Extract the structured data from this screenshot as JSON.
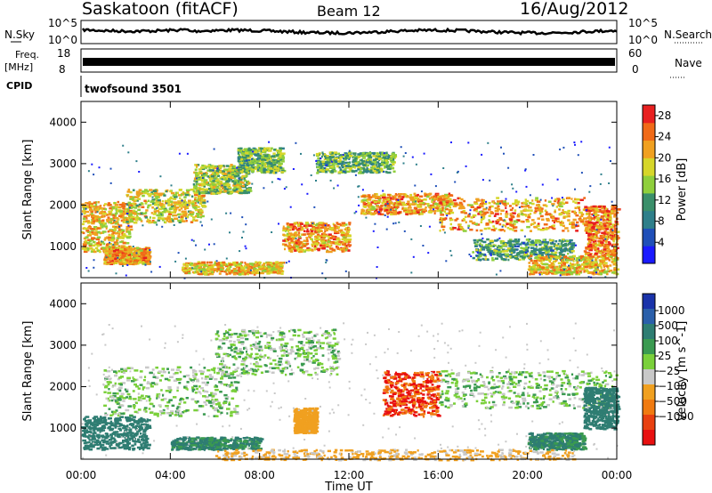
{
  "header": {
    "station": "Saskatoon (fitACF)",
    "beam": "Beam 12",
    "date": "16/Aug/2012"
  },
  "top_panels": {
    "nsky_label": "N.Sky",
    "nsky_ticks": [
      "10^5",
      "10^0"
    ],
    "nsearch_label": "N.Search",
    "nsearch_ticks": [
      "10^5",
      "10^0"
    ],
    "freq_label_1": "Freq.",
    "freq_label_2": "[MHz]",
    "freq_ticks": [
      "18",
      "8"
    ],
    "nave_label": "Nave",
    "nave_ticks": [
      "60",
      "0"
    ],
    "cpid_label": "CPID",
    "cpid_value": "twofsound 3501"
  },
  "colors": {
    "power": [
      "#1a1aff",
      "#1f4fb8",
      "#2e7f8a",
      "#3a8f6a",
      "#8fcf3c",
      "#d6d62a",
      "#f0a020",
      "#f06a18",
      "#e82020"
    ],
    "velocity": [
      "#1a33aa",
      "#2a5faa",
      "#2e7d72",
      "#3a9a50",
      "#7ad03a",
      "#c8c8c8",
      "#f0a020",
      "#f07a10",
      "#e84010",
      "#e81010"
    ]
  },
  "chart_data": [
    {
      "type": "heatmap",
      "panel": "power",
      "ylabel": "Slant Range [km]",
      "yticks": [
        "1000",
        "2000",
        "3000",
        "4000"
      ],
      "ylim": [
        250,
        4500
      ],
      "colorbar_label": "Power [dB]",
      "colorbar_ticks": [
        "4",
        "8",
        "12",
        "16",
        "20",
        "24",
        "28"
      ],
      "colorbar_range": [
        0,
        30
      ],
      "bands": [
        {
          "t0": 0.0,
          "t1": 2.2,
          "r0": 900,
          "r1": 2100,
          "level": 20
        },
        {
          "t0": 1.0,
          "t1": 3.0,
          "r0": 600,
          "r1": 1000,
          "level": 22
        },
        {
          "t0": 2.0,
          "t1": 5.5,
          "r0": 1600,
          "r1": 2400,
          "level": 18
        },
        {
          "t0": 5.0,
          "t1": 7.5,
          "r0": 2300,
          "r1": 3000,
          "level": 16
        },
        {
          "t0": 7.0,
          "t1": 9.0,
          "r0": 2800,
          "r1": 3400,
          "level": 14
        },
        {
          "t0": 4.5,
          "t1": 9.0,
          "r0": 350,
          "r1": 650,
          "level": 20
        },
        {
          "t0": 9.0,
          "t1": 12.0,
          "r0": 900,
          "r1": 1600,
          "level": 22
        },
        {
          "t0": 10.5,
          "t1": 14.0,
          "r0": 2800,
          "r1": 3300,
          "level": 14
        },
        {
          "t0": 12.5,
          "t1": 16.5,
          "r0": 1800,
          "r1": 2300,
          "level": 22
        },
        {
          "t0": 16.0,
          "t1": 22.5,
          "r0": 1400,
          "r1": 2200,
          "level": 22
        },
        {
          "t0": 17.5,
          "t1": 22.0,
          "r0": 700,
          "r1": 1200,
          "level": 12
        },
        {
          "t0": 20.0,
          "t1": 24.0,
          "r0": 350,
          "r1": 800,
          "level": 20
        },
        {
          "t0": 22.5,
          "t1": 24.0,
          "r0": 800,
          "r1": 2000,
          "level": 24
        }
      ]
    },
    {
      "type": "heatmap",
      "panel": "velocity",
      "ylabel": "Slant Range [km]",
      "yticks": [
        "1000",
        "2000",
        "3000",
        "4000"
      ],
      "ylim": [
        250,
        4500
      ],
      "xlabel": "Time UT",
      "xticks": [
        "00:00",
        "04:00",
        "08:00",
        "12:00",
        "16:00",
        "20:00",
        "00:00"
      ],
      "xlim": [
        0,
        24
      ],
      "colorbar_label": "Velocity [m s^-1]",
      "colorbar_ticks": [
        "1000",
        "500",
        "100",
        "25",
        "−25",
        "−100",
        "−500",
        "−1000"
      ],
      "bands": [
        {
          "t0": 0.0,
          "t1": 3.0,
          "r0": 500,
          "r1": 1300,
          "velocity": 200
        },
        {
          "t0": 1.0,
          "t1": 7.0,
          "r0": 1300,
          "r1": 2500,
          "velocity": 0
        },
        {
          "t0": 6.0,
          "t1": 11.5,
          "r0": 2300,
          "r1": 3400,
          "velocity": 0
        },
        {
          "t0": 4.0,
          "t1": 8.0,
          "r0": 500,
          "r1": 800,
          "velocity": 100
        },
        {
          "t0": 9.5,
          "t1": 10.5,
          "r0": 900,
          "r1": 1500,
          "velocity": -150
        },
        {
          "t0": 13.5,
          "t1": 16.0,
          "r0": 1300,
          "r1": 2400,
          "velocity": -800
        },
        {
          "t0": 16.0,
          "t1": 24.0,
          "r0": 1500,
          "r1": 2400,
          "velocity": 0
        },
        {
          "t0": 20.0,
          "t1": 22.5,
          "r0": 500,
          "r1": 900,
          "velocity": 100
        },
        {
          "t0": 22.5,
          "t1": 24.0,
          "r0": 1000,
          "r1": 2000,
          "velocity": 300
        },
        {
          "t0": 6.0,
          "t1": 22.0,
          "r0": 250,
          "r1": 500,
          "velocity": -100
        }
      ]
    }
  ]
}
